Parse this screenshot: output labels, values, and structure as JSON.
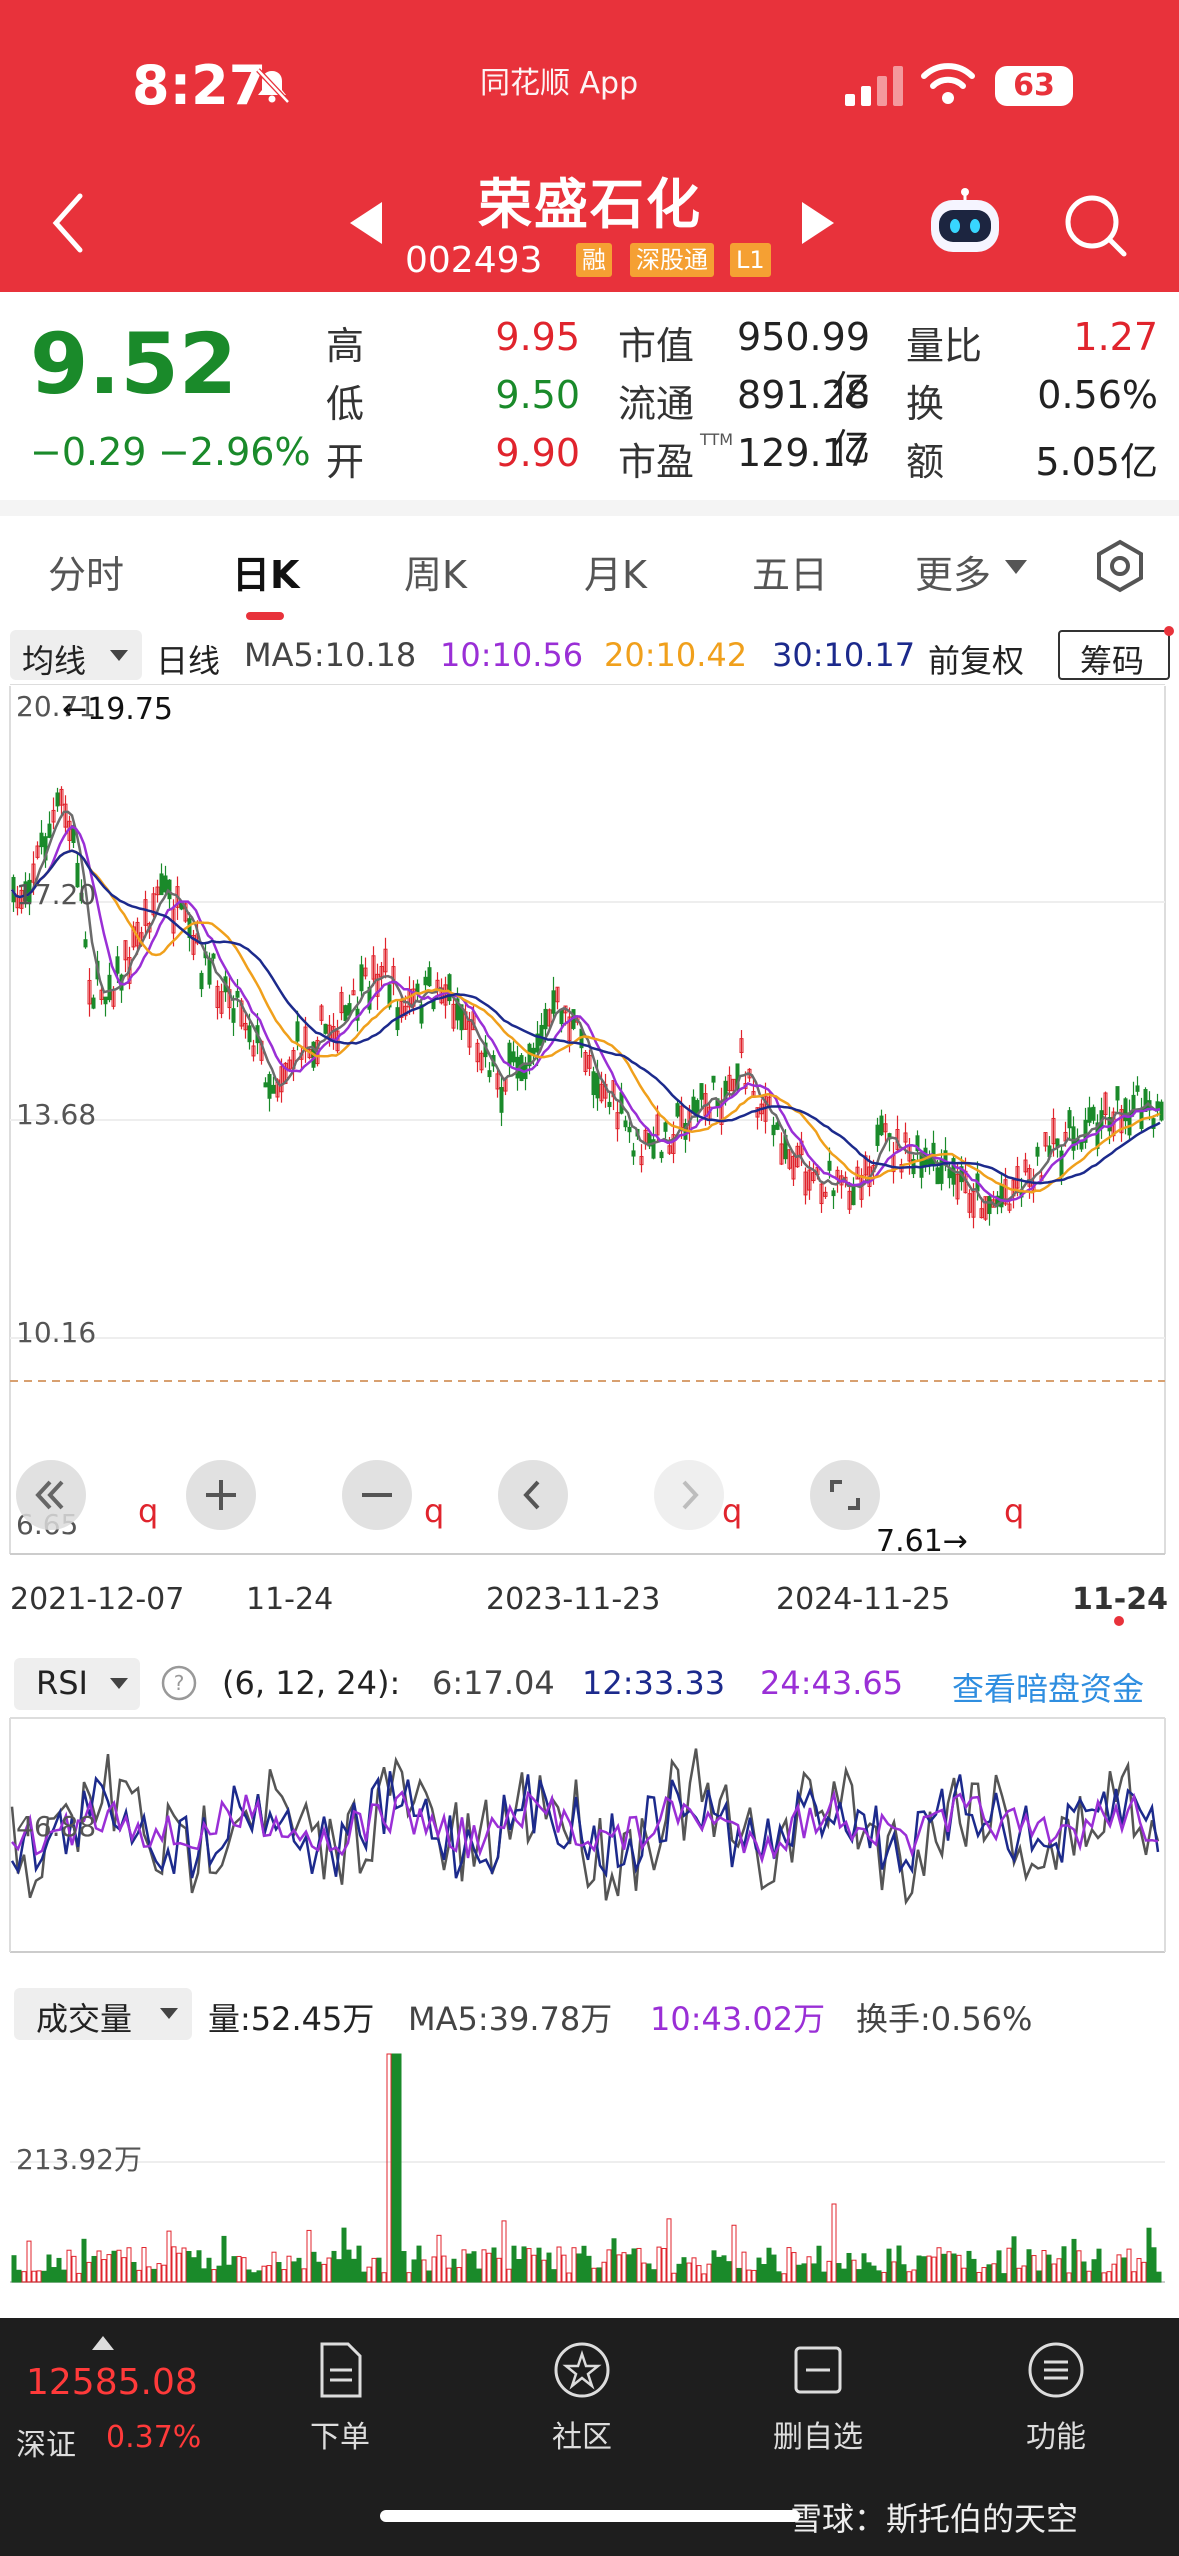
{
  "status_bar": {
    "time": "8:27",
    "app_name": "同花顺 App",
    "battery": "63"
  },
  "header": {
    "stock_name": "荣盛石化",
    "stock_code": "002493",
    "tags": [
      "融",
      "深股通",
      "L1"
    ]
  },
  "quote": {
    "price": "9.52",
    "change": "−0.29",
    "change_pct": "−2.96%",
    "fields": [
      {
        "label": "高",
        "value": "9.95"
      },
      {
        "label": "低",
        "value": "9.50"
      },
      {
        "label": "开",
        "value": "9.90"
      },
      {
        "label": "市值",
        "value": "950.99亿"
      },
      {
        "label": "流通",
        "value": "891.28亿"
      },
      {
        "label": "市盈",
        "value": "129.17",
        "sup": "TTM"
      },
      {
        "label": "量比",
        "value": "1.27"
      },
      {
        "label": "换",
        "value": "0.56%"
      },
      {
        "label": "额",
        "value": "5.05亿"
      }
    ]
  },
  "tabs": [
    "分时",
    "日K",
    "周K",
    "月K",
    "五日",
    "更多"
  ],
  "kline_bar": {
    "ma_select": "均线",
    "period": "日线",
    "ma5": "MA5:10.18",
    "ma10": "10:10.56",
    "ma20": "20:10.42",
    "ma30": "30:10.17",
    "adjust": "前复权",
    "chips": "筹码"
  },
  "kline": {
    "price_ticks": [
      "20.71",
      "17.20",
      "13.68",
      "10.16",
      "6.65"
    ],
    "max_marker": "←19.75",
    "min_marker": "7.61→",
    "q_marker": "q",
    "date_ticks": [
      "2021-12-07",
      "11-24",
      "2023-11-23",
      "2024-11-25",
      "11-24"
    ]
  },
  "rsi": {
    "select": "RSI",
    "params": "(6, 12, 24):",
    "rsi6": "6:17.04",
    "rsi12": "12:33.33",
    "rsi24": "24:43.65",
    "link": "查看暗盘资金",
    "mid_tick": "46.88"
  },
  "volume": {
    "select": "成交量",
    "vol": "量:52.45万",
    "ma5": "MA5:39.78万",
    "ma10": "10:43.02万",
    "turnover": "换手:0.56%",
    "tick": "213.92万"
  },
  "bottom": {
    "index_value": "12585.08",
    "index_name": "深证",
    "index_pct": "0.37%",
    "nav": [
      "下单",
      "社区",
      "删自选",
      "功能"
    ],
    "watermark": "雪球：斯托伯的天空"
  },
  "colors": {
    "header_red": "#e8323b",
    "up_red": "#e0242d",
    "down_green": "#1a8a2a",
    "ma10_purple": "#9a2fd6",
    "ma20_orange": "#f0a01c",
    "ma30_navy": "#1c2a8c"
  }
}
